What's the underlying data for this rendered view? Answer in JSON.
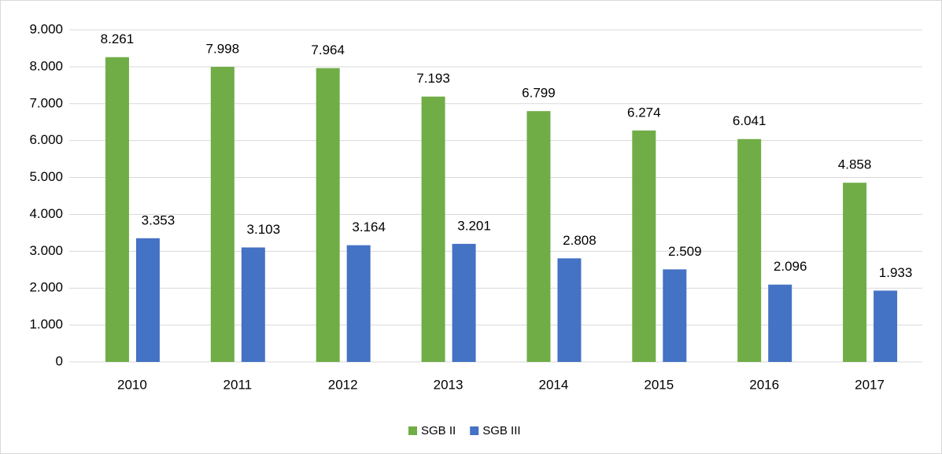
{
  "chart_data": {
    "type": "bar",
    "categories": [
      "2010",
      "2011",
      "2012",
      "2013",
      "2014",
      "2015",
      "2016",
      "2017"
    ],
    "series": [
      {
        "name": "SGB II",
        "color": "#70ad47",
        "values": [
          8261,
          7998,
          7964,
          7193,
          6799,
          6274,
          6041,
          4858
        ],
        "value_labels": [
          "8.261",
          "7.998",
          "7.964",
          "7.193",
          "6.799",
          "6.274",
          "6.041",
          "4.858"
        ]
      },
      {
        "name": "SGB III",
        "color": "#4472c4",
        "values": [
          3353,
          3103,
          3164,
          3201,
          2808,
          2509,
          2096,
          1933
        ],
        "value_labels": [
          "3.353",
          "3.103",
          "3.164",
          "3.201",
          "2.808",
          "2.509",
          "2.096",
          "1.933"
        ]
      }
    ],
    "ylim": [
      0,
      9000
    ],
    "yticks": [
      0,
      {
        "value": 1000,
        "label": "1.000"
      },
      {
        "value": 2000,
        "label": "2.000"
      },
      {
        "value": 3000,
        "label": "3.000"
      },
      {
        "value": 4000,
        "label": "4.000"
      },
      {
        "value": 5000,
        "label": "5.000"
      },
      {
        "value": 6000,
        "label": "6.000"
      },
      {
        "value": 7000,
        "label": "7.000"
      },
      {
        "value": 8000,
        "label": "8.000"
      },
      {
        "value": 9000,
        "label": "9.000"
      }
    ],
    "grid": true,
    "legend": "bottom"
  }
}
